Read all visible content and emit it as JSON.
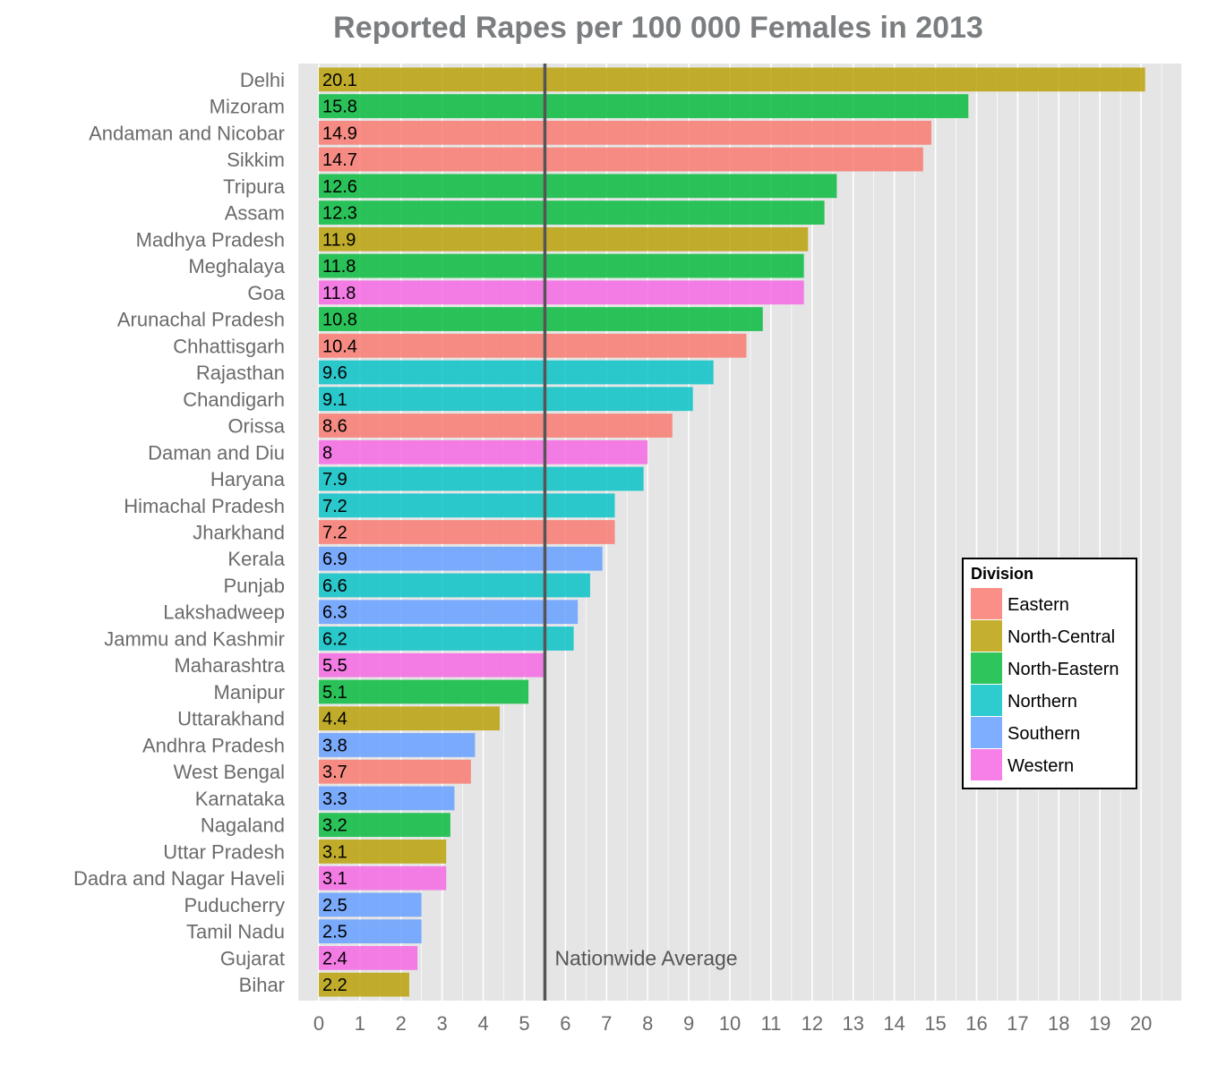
{
  "chart_data": {
    "type": "bar",
    "orientation": "horizontal",
    "title": "Reported Rapes per 100 000 Females in 2013",
    "xlabel": "",
    "ylabel": "",
    "xlim": [
      -0.5,
      21.0
    ],
    "x_ticks": [
      0,
      1,
      2,
      3,
      4,
      5,
      6,
      7,
      8,
      9,
      10,
      11,
      12,
      13,
      14,
      15,
      16,
      17,
      18,
      19,
      20
    ],
    "grid": true,
    "legend": {
      "title": "Division",
      "placement": "right",
      "items": [
        {
          "name": "Eastern",
          "color": "#F8766D"
        },
        {
          "name": "North-Central",
          "color": "#B79F00"
        },
        {
          "name": "North-Eastern",
          "color": "#00BA38"
        },
        {
          "name": "Northern",
          "color": "#00BFC4"
        },
        {
          "name": "Southern",
          "color": "#619CFF"
        },
        {
          "name": "Western",
          "color": "#F564E3"
        }
      ]
    },
    "reference_line": {
      "value": 5.5,
      "label": "Nationwide Average"
    },
    "bars": [
      {
        "state": "Delhi",
        "value": 20.1,
        "label": "20.1",
        "division": "North-Central"
      },
      {
        "state": "Mizoram",
        "value": 15.8,
        "label": "15.8",
        "division": "North-Eastern"
      },
      {
        "state": "Andaman and Nicobar",
        "value": 14.9,
        "label": "14.9",
        "division": "Eastern"
      },
      {
        "state": "Sikkim",
        "value": 14.7,
        "label": "14.7",
        "division": "Eastern"
      },
      {
        "state": "Tripura",
        "value": 12.6,
        "label": "12.6",
        "division": "North-Eastern"
      },
      {
        "state": "Assam",
        "value": 12.3,
        "label": "12.3",
        "division": "North-Eastern"
      },
      {
        "state": "Madhya Pradesh",
        "value": 11.9,
        "label": "11.9",
        "division": "North-Central"
      },
      {
        "state": "Meghalaya",
        "value": 11.8,
        "label": "11.8",
        "division": "North-Eastern"
      },
      {
        "state": "Goa",
        "value": 11.8,
        "label": "11.8",
        "division": "Western"
      },
      {
        "state": "Arunachal Pradesh",
        "value": 10.8,
        "label": "10.8",
        "division": "North-Eastern"
      },
      {
        "state": "Chhattisgarh",
        "value": 10.4,
        "label": "10.4",
        "division": "Eastern"
      },
      {
        "state": "Rajasthan",
        "value": 9.6,
        "label": "9.6",
        "division": "Northern"
      },
      {
        "state": "Chandigarh",
        "value": 9.1,
        "label": "9.1",
        "division": "Northern"
      },
      {
        "state": "Orissa",
        "value": 8.6,
        "label": "8.6",
        "division": "Eastern"
      },
      {
        "state": "Daman and Diu",
        "value": 8.0,
        "label": "8",
        "division": "Western"
      },
      {
        "state": "Haryana",
        "value": 7.9,
        "label": "7.9",
        "division": "Northern"
      },
      {
        "state": "Himachal Pradesh",
        "value": 7.2,
        "label": "7.2",
        "division": "Northern"
      },
      {
        "state": "Jharkhand",
        "value": 7.2,
        "label": "7.2",
        "division": "Eastern"
      },
      {
        "state": "Kerala",
        "value": 6.9,
        "label": "6.9",
        "division": "Southern"
      },
      {
        "state": "Punjab",
        "value": 6.6,
        "label": "6.6",
        "division": "Northern"
      },
      {
        "state": "Lakshadweep",
        "value": 6.3,
        "label": "6.3",
        "division": "Southern"
      },
      {
        "state": "Jammu and Kashmir",
        "value": 6.2,
        "label": "6.2",
        "division": "Northern"
      },
      {
        "state": "Maharashtra",
        "value": 5.5,
        "label": "5.5",
        "division": "Western"
      },
      {
        "state": "Manipur",
        "value": 5.1,
        "label": "5.1",
        "division": "North-Eastern"
      },
      {
        "state": "Uttarakhand",
        "value": 4.4,
        "label": "4.4",
        "division": "North-Central"
      },
      {
        "state": "Andhra Pradesh",
        "value": 3.8,
        "label": "3.8",
        "division": "Southern"
      },
      {
        "state": "West Bengal",
        "value": 3.7,
        "label": "3.7",
        "division": "Eastern"
      },
      {
        "state": "Karnataka",
        "value": 3.3,
        "label": "3.3",
        "division": "Southern"
      },
      {
        "state": "Nagaland",
        "value": 3.2,
        "label": "3.2",
        "division": "North-Eastern"
      },
      {
        "state": "Uttar Pradesh",
        "value": 3.1,
        "label": "3.1",
        "division": "North-Central"
      },
      {
        "state": "Dadra and Nagar Haveli",
        "value": 3.1,
        "label": "3.1",
        "division": "Western"
      },
      {
        "state": "Puducherry",
        "value": 2.5,
        "label": "2.5",
        "division": "Southern"
      },
      {
        "state": "Tamil Nadu",
        "value": 2.5,
        "label": "2.5",
        "division": "Southern"
      },
      {
        "state": "Gujarat",
        "value": 2.4,
        "label": "2.4",
        "division": "Western"
      },
      {
        "state": "Bihar",
        "value": 2.2,
        "label": "2.2",
        "division": "North-Central"
      }
    ]
  }
}
